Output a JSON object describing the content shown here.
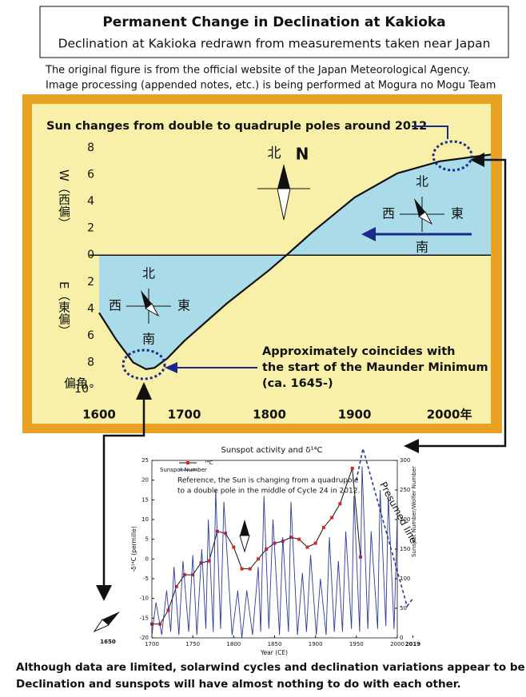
{
  "header": {
    "title": "Permanent Change in Declination at Kakioka",
    "subtitle": "Declination at Kakioka redrawn from measurements taken near Japan"
  },
  "notes": [
    "The original figure is from the official website of the Japan Meteorological Agency.",
    "Image processing (appended notes, etc.) is being performed at Mogura no Mogu Team"
  ],
  "chart_data": [
    {
      "type": "area",
      "color": "#a9dbe8",
      "line_color": "#111111",
      "background": "#f8f0a8",
      "x": [
        1600,
        1620,
        1640,
        1655,
        1665,
        1680,
        1700,
        1750,
        1800,
        1820,
        1850,
        1900,
        1950,
        2000,
        2060
      ],
      "values": [
        -4.3,
        -6.3,
        -8.0,
        -8.5,
        -8.4,
        -7.7,
        -6.4,
        -3.6,
        -1.1,
        0,
        1.7,
        4.3,
        6.1,
        7.0,
        7.5
      ],
      "xlim": [
        1600,
        2060
      ],
      "ylim": [
        -10,
        8
      ],
      "xticks": [
        1600,
        1700,
        1800,
        {
          "value": 2000,
          "label": "2000年"
        },
        1900
      ],
      "yticks": [
        8,
        6,
        4,
        2,
        0,
        {
          "value": -2,
          "label": "2"
        },
        {
          "value": -4,
          "label": "4"
        },
        {
          "value": -6,
          "label": "6"
        },
        {
          "value": -8,
          "label": "8"
        },
        {
          "value": -10,
          "label": "10°"
        }
      ],
      "y_label_west": "W（西偏）",
      "y_label_east": "E（東偏）",
      "y_label_unit": "偏角",
      "annotations": {
        "poles": "Sun changes from double to quadruple poles around 2012",
        "maunder": [
          "Approximately coincides with",
          "the start of the Maunder Minimum",
          "(ca. 1645-)"
        ]
      },
      "north": {
        "kanji": "北",
        "letter": "N"
      },
      "compasses": [
        {
          "n": "北",
          "w": "西",
          "e": "東",
          "s": "南"
        },
        {
          "n": "北",
          "w": "西",
          "e": "東",
          "s": "南"
        }
      ]
    },
    {
      "type": "line",
      "title": "Sunspot activity and δ¹⁴C",
      "x_label": "Year (CE)",
      "y_label": "-δ¹⁴C (permille)",
      "y2_label": "Sunspot Number/Wolfer Number",
      "xlim": [
        1700,
        2000
      ],
      "ylim": [
        -20,
        25
      ],
      "y2lim": [
        0,
        300
      ],
      "xticks": [
        1700,
        1750,
        1800,
        1850,
        1900,
        1950,
        2000,
        2019
      ],
      "yticks": [
        -20,
        -15,
        -10,
        -5,
        0,
        5,
        10,
        15,
        20,
        25
      ],
      "y2ticks": [
        0,
        50,
        100,
        150,
        200,
        250,
        300
      ],
      "note": [
        "Reference, the Sun is changing from a quadrupole",
        "to a double pole in the middle of Cycle 24 in 2012."
      ],
      "series": [
        {
          "name": "¹⁴C",
          "color": "#d62728",
          "line_color": "#111111",
          "x": [
            1700,
            1710,
            1720,
            1730,
            1740,
            1750,
            1760,
            1770,
            1780,
            1790,
            1800,
            1810,
            1820,
            1830,
            1840,
            1850,
            1860,
            1870,
            1880,
            1890,
            1900,
            1910,
            1920,
            1930,
            1945,
            1955
          ],
          "values": [
            -16.5,
            -16.5,
            -13,
            -7,
            -4,
            -4,
            -1,
            -0.5,
            7,
            6.5,
            3,
            -2.5,
            -2.5,
            0,
            2.5,
            4,
            4.5,
            5.5,
            5,
            3,
            4,
            8,
            10.5,
            14,
            23,
            0.5
          ]
        },
        {
          "name": "Sunspot Number",
          "color": "#2b3a9b",
          "axis": "y2",
          "x": [
            1700,
            1705,
            1712,
            1718,
            1723,
            1727,
            1733,
            1738,
            1745,
            1750,
            1755,
            1761,
            1766,
            1769,
            1775,
            1778,
            1784,
            1788,
            1798,
            1805,
            1810,
            1816,
            1823,
            1830,
            1833,
            1837,
            1843,
            1848,
            1856,
            1860,
            1867,
            1870,
            1878,
            1884,
            1889,
            1894,
            1901,
            1906,
            1913,
            1917,
            1923,
            1928,
            1933,
            1937,
            1944,
            1947,
            1954,
            1957,
            1964,
            1968,
            1976,
            1979,
            1986,
            1989,
            1996,
            2000
          ],
          "values": [
            5,
            60,
            5,
            80,
            10,
            120,
            5,
            130,
            10,
            140,
            5,
            150,
            15,
            200,
            10,
            250,
            15,
            230,
            5,
            80,
            0,
            80,
            5,
            120,
            10,
            240,
            15,
            200,
            5,
            170,
            10,
            230,
            5,
            110,
            10,
            140,
            5,
            100,
            5,
            170,
            10,
            130,
            10,
            180,
            15,
            240,
            10,
            290,
            15,
            180,
            15,
            250,
            20,
            240,
            15,
            200
          ]
        },
        {
          "name": "Presumed line",
          "color": "#2b3a9b",
          "dashed": true,
          "x": [
            1950,
            1958,
            2012,
            2019
          ],
          "values": [
            20,
            28,
            -12,
            -10
          ]
        }
      ]
    }
  ],
  "side_label": "1650",
  "footer": [
    "Although data are limited, solarwind cycles and declination variations appear to be linked.",
    "Declination and sunspots will have almost nothing to do with each other."
  ]
}
